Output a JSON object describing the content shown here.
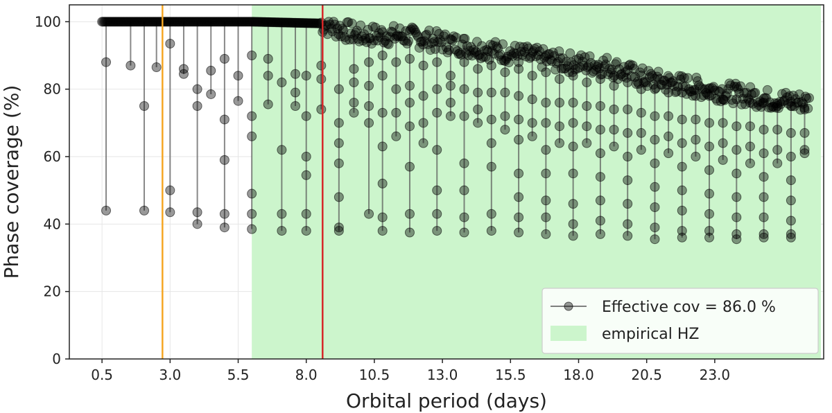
{
  "chart_data": {
    "type": "scatter",
    "title": "",
    "xlabel": "Orbital period (days)",
    "ylabel": "Phase coverage (%)",
    "xlim": [
      -0.7,
      27.0
    ],
    "ylim": [
      0,
      105
    ],
    "xticks": [
      0.5,
      3.0,
      5.5,
      8.0,
      10.5,
      13.0,
      15.5,
      18.0,
      20.5,
      23.0
    ],
    "xtick_labels": [
      "0.5",
      "3.0",
      "5.5",
      "8.0",
      "10.5",
      "13.0",
      "15.5",
      "18.0",
      "20.5",
      "23.0"
    ],
    "yticks": [
      0,
      20,
      40,
      60,
      80,
      100
    ],
    "ytick_labels": [
      "0",
      "20",
      "40",
      "60",
      "80",
      "100"
    ],
    "grid": true,
    "legend_position": "bottom-right",
    "vertical_lines": [
      {
        "x": 2.72,
        "color": "#f5a623"
      },
      {
        "x": 8.6,
        "color": "#d62728"
      }
    ],
    "shaded_region": {
      "name": "empirical HZ",
      "x": [
        6.0,
        26.9
      ],
      "color": "#ccf5cc"
    },
    "series": [
      {
        "name": "Effective cov = 86.0 %",
        "color": "#000000",
        "marker": "circle",
        "period_range": [
          0.5,
          26.5
        ],
        "upper_envelope": [
          [
            0.5,
            100
          ],
          [
            6.0,
            100
          ],
          [
            8.5,
            99.5
          ],
          [
            10.0,
            96
          ],
          [
            11.5,
            96
          ],
          [
            13.0,
            94
          ],
          [
            14.5,
            92
          ],
          [
            16.0,
            90
          ],
          [
            17.5,
            88
          ],
          [
            19.0,
            87
          ],
          [
            20.5,
            83
          ],
          [
            22.0,
            81
          ],
          [
            23.5,
            79
          ],
          [
            25.0,
            77
          ],
          [
            26.5,
            76
          ]
        ],
        "dips": [
          {
            "x": 0.65,
            "values": [
              88,
              44
            ]
          },
          {
            "x": 1.55,
            "values": [
              87
            ]
          },
          {
            "x": 2.05,
            "values": [
              75,
              44
            ]
          },
          {
            "x": 2.5,
            "values": [
              86.5
            ]
          },
          {
            "x": 3.0,
            "values": [
              93.5,
              50,
              43.5
            ]
          },
          {
            "x": 3.5,
            "values": [
              86,
              84.5
            ]
          },
          {
            "x": 4.0,
            "values": [
              80,
              75,
              43.5,
              40
            ]
          },
          {
            "x": 4.5,
            "values": [
              85.5,
              78.5
            ]
          },
          {
            "x": 5.0,
            "values": [
              89,
              71,
              59,
              43,
              39
            ]
          },
          {
            "x": 5.5,
            "values": [
              84,
              76.5
            ]
          },
          {
            "x": 6.0,
            "values": [
              90,
              72,
              66,
              49,
              43,
              38.5
            ]
          },
          {
            "x": 6.6,
            "values": [
              89,
              84,
              75.5
            ]
          },
          {
            "x": 7.1,
            "values": [
              82,
              62,
              43,
              38
            ]
          },
          {
            "x": 7.6,
            "values": [
              84.5,
              79,
              75
            ]
          },
          {
            "x": 8.0,
            "values": [
              84,
              72,
              60,
              54.5,
              43,
              38
            ]
          },
          {
            "x": 8.55,
            "values": [
              87,
              83,
              74
            ]
          },
          {
            "x": 9.2,
            "values": [
              80,
              70,
              64,
              58,
              48,
              39,
              38
            ]
          },
          {
            "x": 9.75,
            "values": [
              86,
              82,
              76,
              73
            ]
          },
          {
            "x": 10.3,
            "values": [
              88,
              81,
              75,
              70,
              43
            ]
          },
          {
            "x": 10.8,
            "values": [
              90,
              84,
              73,
              63,
              52,
              42,
              38
            ]
          },
          {
            "x": 11.3,
            "values": [
              88,
              80,
              73,
              66
            ]
          },
          {
            "x": 11.8,
            "values": [
              89,
              81,
              76,
              69,
              57,
              43,
              37.5
            ]
          },
          {
            "x": 12.3,
            "values": [
              87,
              78,
              70,
              64
            ]
          },
          {
            "x": 12.8,
            "values": [
              88,
              80,
              73,
              62,
              50,
              43,
              38
            ]
          },
          {
            "x": 13.3,
            "values": [
              84,
              81,
              76,
              72
            ]
          },
          {
            "x": 13.8,
            "values": [
              88,
              80,
              72,
              58,
              50,
              42,
              37.5
            ]
          },
          {
            "x": 14.3,
            "values": [
              86,
              79,
              74,
              70
            ]
          },
          {
            "x": 14.8,
            "values": [
              87,
              79,
              71,
              64,
              57,
              43,
              38
            ]
          },
          {
            "x": 15.3,
            "values": [
              85,
              79,
              72,
              68
            ]
          },
          {
            "x": 15.8,
            "values": [
              86,
              78,
              71,
              65,
              55,
              48,
              42,
              37.5
            ]
          },
          {
            "x": 16.3,
            "values": [
              84,
              77,
              70,
              66
            ]
          },
          {
            "x": 16.8,
            "values": [
              85,
              76,
              70,
              62,
              55,
              47,
              42,
              37
            ]
          },
          {
            "x": 17.3,
            "values": [
              83,
              76,
              69,
              64
            ]
          },
          {
            "x": 17.8,
            "values": [
              84,
              76,
              70,
              63,
              55,
              46,
              40,
              36.5
            ]
          },
          {
            "x": 18.3,
            "values": [
              82,
              75,
              69,
              64
            ]
          },
          {
            "x": 18.8,
            "values": [
              83,
              75,
              68,
              61,
              54,
              47,
              41,
              37
            ]
          },
          {
            "x": 19.3,
            "values": [
              81,
              74,
              68,
              63
            ]
          },
          {
            "x": 19.8,
            "values": [
              82,
              74,
              67,
              60,
              53,
              46,
              40,
              36.5
            ]
          },
          {
            "x": 20.3,
            "values": [
              80,
              73,
              67,
              62
            ]
          },
          {
            "x": 20.8,
            "values": [
              80,
              72,
              65,
              58,
              51,
              45,
              39,
              35.5
            ]
          },
          {
            "x": 21.3,
            "values": [
              79,
              72,
              66,
              61
            ]
          },
          {
            "x": 21.8,
            "values": [
              79,
              71,
              64,
              57,
              50,
              44,
              38,
              36
            ]
          },
          {
            "x": 22.3,
            "values": [
              78,
              71,
              65,
              60
            ]
          },
          {
            "x": 22.8,
            "values": [
              78,
              70,
              63,
              56,
              49,
              43,
              38,
              36
            ]
          },
          {
            "x": 23.3,
            "values": [
              77,
              70,
              64,
              59
            ]
          },
          {
            "x": 23.8,
            "values": [
              77,
              69,
              62,
              55,
              48,
              42,
              37,
              35.5
            ]
          },
          {
            "x": 24.3,
            "values": [
              76,
              69,
              63,
              58
            ]
          },
          {
            "x": 24.8,
            "values": [
              76,
              68,
              61,
              54,
              48,
              42,
              37,
              36
            ]
          },
          {
            "x": 25.3,
            "values": [
              75,
              68,
              62,
              58
            ]
          },
          {
            "x": 25.8,
            "values": [
              75,
              67,
              60,
              53,
              47,
              41,
              37,
              36
            ]
          },
          {
            "x": 26.3,
            "values": [
              74,
              67,
              61,
              62
            ]
          }
        ]
      }
    ]
  }
}
